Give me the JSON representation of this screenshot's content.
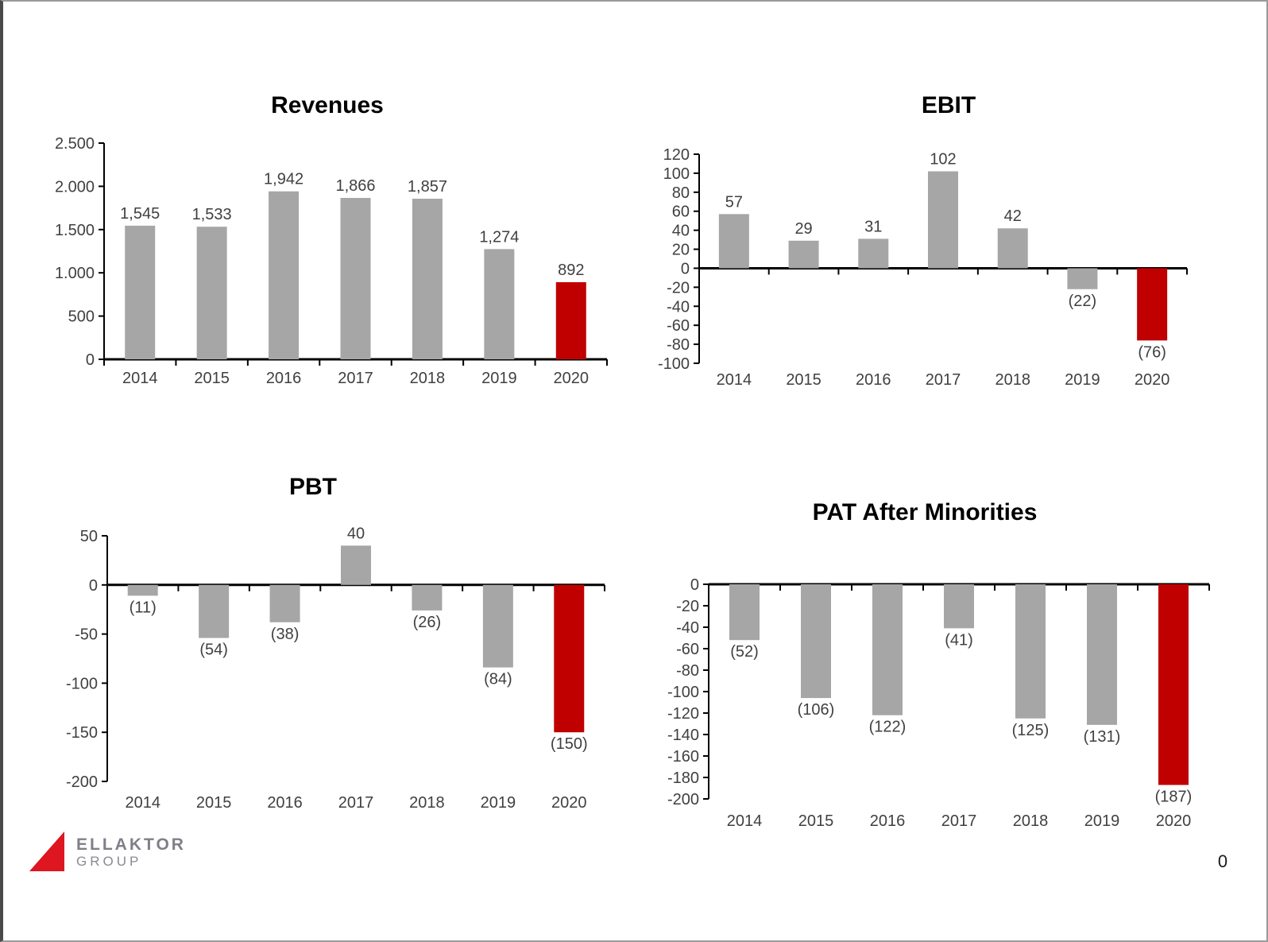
{
  "slide": {
    "page_number": "0"
  },
  "logo": {
    "company": "ELLAKTOR",
    "division": "GROUP"
  },
  "colors": {
    "bar_default": "#a6a6a6",
    "bar_highlight": "#c00000",
    "axis": "#000000",
    "label": "#404040",
    "logo_red": "#dd161f"
  },
  "chart_data": [
    {
      "type": "bar",
      "title": "Revenues",
      "xlabel": "",
      "ylabel": "",
      "grid": false,
      "legend": "none",
      "categories": [
        "2014",
        "2015",
        "2016",
        "2017",
        "2018",
        "2019",
        "2020"
      ],
      "values": [
        1545,
        1533,
        1942,
        1866,
        1857,
        1274,
        892
      ],
      "labels": [
        "1,545",
        "1,533",
        "1,942",
        "1,866",
        "1,857",
        "1,274",
        "892"
      ],
      "highlight_index": 6,
      "ylim": [
        0,
        2500
      ],
      "y_ticks": [
        {
          "value": 2500,
          "label": "2.500"
        },
        {
          "value": 2000,
          "label": "2.000"
        },
        {
          "value": 1500,
          "label": "1.500"
        },
        {
          "value": 1000,
          "label": "1.000"
        },
        {
          "value": 500,
          "label": "500"
        },
        {
          "value": 0,
          "label": "0"
        }
      ]
    },
    {
      "type": "bar",
      "title": "EBIT",
      "xlabel": "",
      "ylabel": "",
      "grid": false,
      "legend": "none",
      "categories": [
        "2014",
        "2015",
        "2016",
        "2017",
        "2018",
        "2019",
        "2020"
      ],
      "values": [
        57,
        29,
        31,
        102,
        42,
        -22,
        -76
      ],
      "labels": [
        "57",
        "29",
        "31",
        "102",
        "42",
        "(22)",
        "(76)"
      ],
      "highlight_index": 6,
      "ylim": [
        -100,
        120
      ],
      "y_ticks": [
        {
          "value": 120,
          "label": "120"
        },
        {
          "value": 100,
          "label": "100"
        },
        {
          "value": 80,
          "label": "80"
        },
        {
          "value": 60,
          "label": "60"
        },
        {
          "value": 40,
          "label": "40"
        },
        {
          "value": 20,
          "label": "20"
        },
        {
          "value": 0,
          "label": "0"
        },
        {
          "value": -20,
          "label": "-20"
        },
        {
          "value": -40,
          "label": "-40"
        },
        {
          "value": -60,
          "label": "-60"
        },
        {
          "value": -80,
          "label": "-80"
        },
        {
          "value": -100,
          "label": "-100"
        }
      ]
    },
    {
      "type": "bar",
      "title": "PBT",
      "xlabel": "",
      "ylabel": "",
      "grid": false,
      "legend": "none",
      "categories": [
        "2014",
        "2015",
        "2016",
        "2017",
        "2018",
        "2019",
        "2020"
      ],
      "values": [
        -11,
        -54,
        -38,
        40,
        -26,
        -84,
        -150
      ],
      "labels": [
        "(11)",
        "(54)",
        "(38)",
        "40",
        "(26)",
        "(84)",
        "(150)"
      ],
      "highlight_index": 6,
      "ylim": [
        -200,
        50
      ],
      "y_ticks": [
        {
          "value": 50,
          "label": "50"
        },
        {
          "value": 0,
          "label": "0"
        },
        {
          "value": -50,
          "label": "-50"
        },
        {
          "value": -100,
          "label": "-100"
        },
        {
          "value": -150,
          "label": "-150"
        },
        {
          "value": -200,
          "label": "-200"
        }
      ]
    },
    {
      "type": "bar",
      "title": "PAT After Minorities",
      "xlabel": "",
      "ylabel": "",
      "grid": false,
      "legend": "none",
      "categories": [
        "2014",
        "2015",
        "2016",
        "2017",
        "2018",
        "2019",
        "2020"
      ],
      "values": [
        -52,
        -106,
        -122,
        -41,
        -125,
        -131,
        -187
      ],
      "labels": [
        "(52)",
        "(106)",
        "(122)",
        "(41)",
        "(125)",
        "(131)",
        "(187)"
      ],
      "highlight_index": 6,
      "ylim": [
        -200,
        0
      ],
      "y_ticks": [
        {
          "value": 0,
          "label": "0"
        },
        {
          "value": -20,
          "label": "-20"
        },
        {
          "value": -40,
          "label": "-40"
        },
        {
          "value": -60,
          "label": "-60"
        },
        {
          "value": -80,
          "label": "-80"
        },
        {
          "value": -100,
          "label": "-100"
        },
        {
          "value": -120,
          "label": "-120"
        },
        {
          "value": -140,
          "label": "-140"
        },
        {
          "value": -160,
          "label": "-160"
        },
        {
          "value": -180,
          "label": "-180"
        },
        {
          "value": -200,
          "label": "-200"
        }
      ]
    }
  ]
}
